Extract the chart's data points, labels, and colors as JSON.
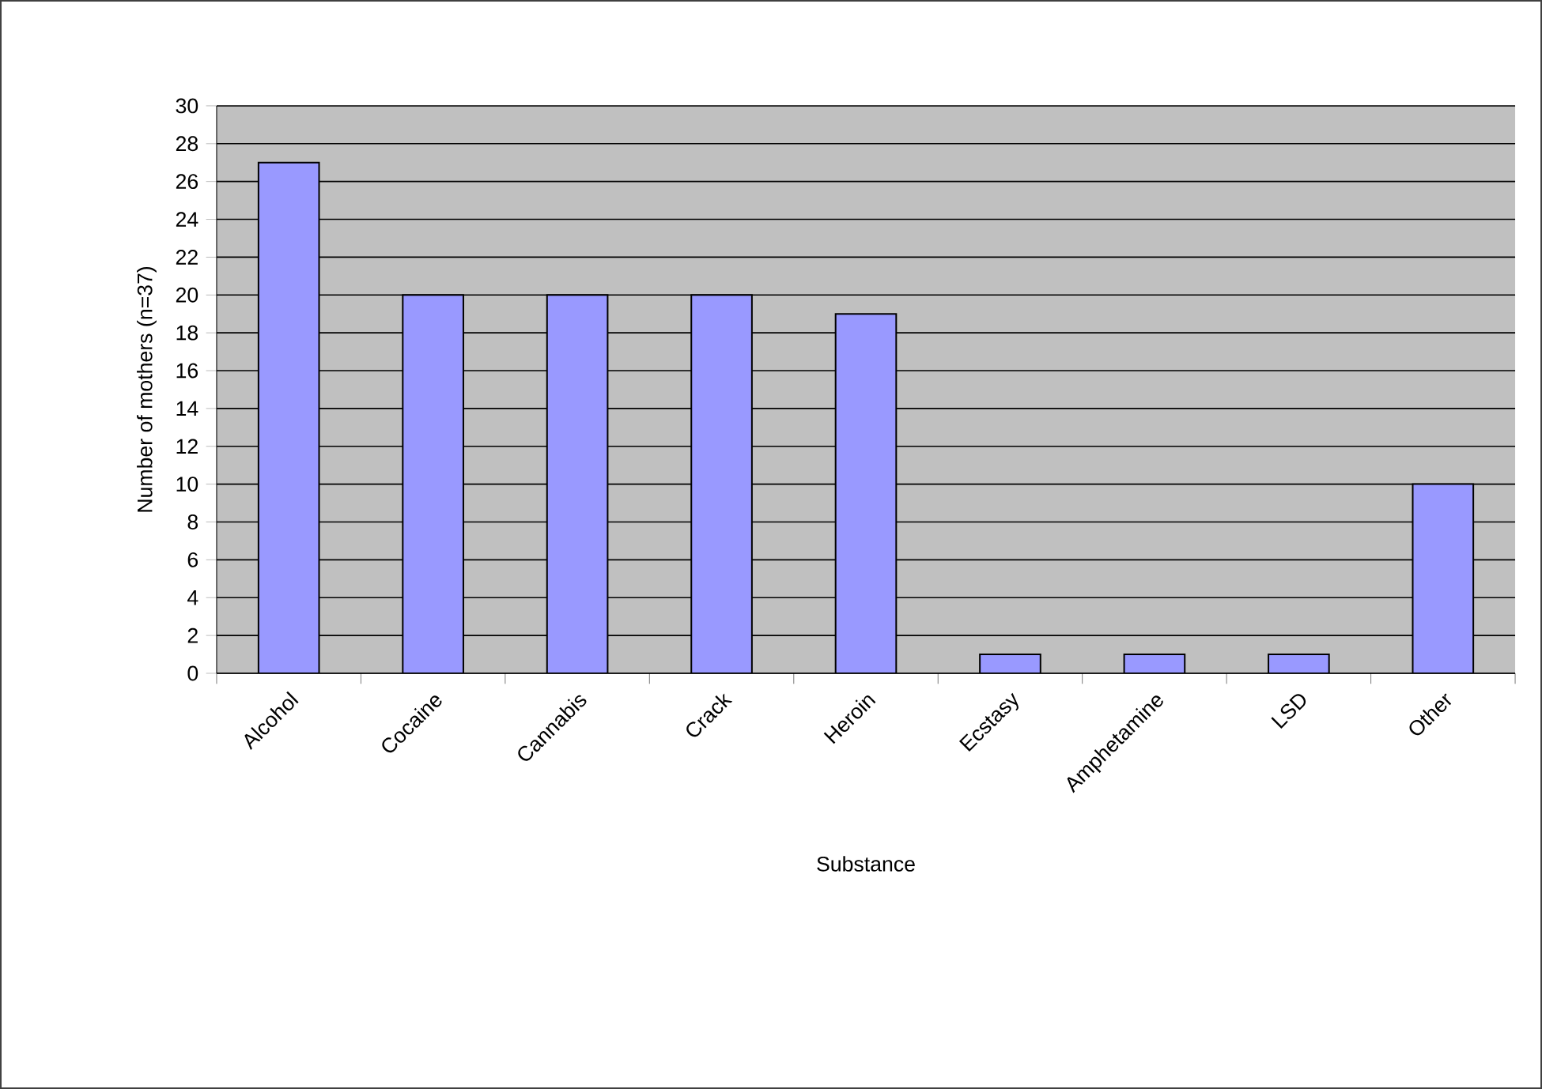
{
  "chart_data": {
    "type": "bar",
    "xlabel": "Substance",
    "ylabel": "Number of mothers (n=37)",
    "categories": [
      "Alcohol",
      "Cocaine",
      "Cannabis",
      "Crack",
      "Heroin",
      "Ecstasy",
      "Amphetamine",
      "LSD",
      "Other"
    ],
    "values": [
      27,
      20,
      20,
      20,
      19,
      1,
      1,
      1,
      10
    ],
    "color": "#9999ff",
    "ylim": [
      0,
      30
    ],
    "yticks": [
      0,
      2,
      4,
      6,
      8,
      10,
      12,
      14,
      16,
      18,
      20,
      22,
      24,
      26,
      28,
      30
    ],
    "grid": "y"
  }
}
